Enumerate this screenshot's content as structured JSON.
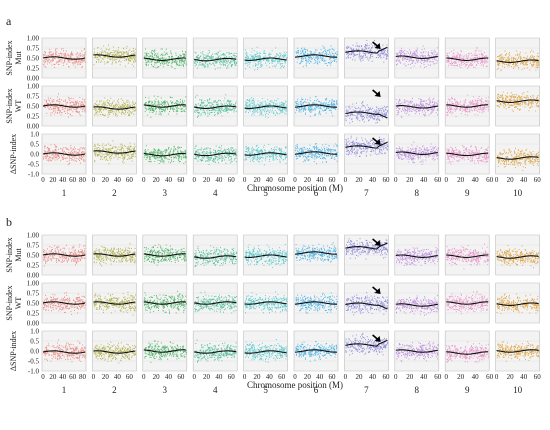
{
  "figure": {
    "panel_labels": [
      "a",
      "b"
    ]
  },
  "chart_data": [
    {
      "type": "scatter",
      "panel": "a",
      "xlabel": "Chromosome position (M)",
      "chromosomes": [
        "1",
        "2",
        "3",
        "4",
        "5",
        "6",
        "7",
        "8",
        "9",
        "10"
      ],
      "chromosome_x_ticks": {
        "1": [
          "0",
          "20",
          "40",
          "60",
          "80"
        ],
        "2": [
          "0",
          "20",
          "40",
          "60"
        ],
        "3": [
          "0",
          "20",
          "40",
          "60"
        ],
        "4": [
          "0",
          "20",
          "40",
          "60"
        ],
        "5": [
          "0",
          "20",
          "40",
          "60"
        ],
        "6": [
          "0",
          "20",
          "40",
          "60"
        ],
        "7": [
          "0",
          "20",
          "40",
          "60"
        ],
        "8": [
          "0",
          "20",
          "40",
          "60"
        ],
        "9": [
          "0",
          "20",
          "40",
          "60"
        ],
        "10": [
          "0",
          "20",
          "40",
          "60"
        ]
      },
      "colors": [
        "#e8746c",
        "#a3a32a",
        "#2aa84a",
        "#2eb387",
        "#35bfc4",
        "#2aa6e0",
        "#7a74d6",
        "#b37ad9",
        "#e67bc0",
        "#d9931f"
      ],
      "rows": [
        {
          "ylabel": [
            "SNP-index",
            "Mut"
          ],
          "ylim": [
            0,
            1
          ],
          "yticks": [
            "1.00",
            "0.75",
            "0.50",
            "0.25",
            "0.00"
          ],
          "trend": [
            0.5,
            0.55,
            0.47,
            0.46,
            0.47,
            0.55,
            0.65,
            0.52,
            0.47,
            0.42
          ],
          "arrow_chromosome": "7"
        },
        {
          "ylabel": [
            "SNP-index",
            "WT"
          ],
          "ylim": [
            0,
            1
          ],
          "yticks": [
            "1.00",
            "0.75",
            "0.50",
            "0.25",
            "0.00"
          ],
          "trend": [
            0.5,
            0.45,
            0.5,
            0.47,
            0.47,
            0.5,
            0.32,
            0.48,
            0.5,
            0.62
          ],
          "arrow_chromosome": "7"
        },
        {
          "ylabel": [
            "ΔSNP-index"
          ],
          "ylim": [
            -1,
            1
          ],
          "yticks": [
            "1.0",
            "0.5",
            "0.0",
            "-0.5",
            "-1.0"
          ],
          "trend": [
            0.0,
            0.1,
            -0.03,
            -0.02,
            0.0,
            0.05,
            0.35,
            0.04,
            -0.02,
            -0.2
          ],
          "arrow_chromosome": "7"
        }
      ]
    },
    {
      "type": "scatter",
      "panel": "b",
      "xlabel": "Chromosome position (M)",
      "chromosomes": [
        "1",
        "2",
        "3",
        "4",
        "5",
        "6",
        "7",
        "8",
        "9",
        "10"
      ],
      "chromosome_x_ticks": {
        "1": [
          "0",
          "20",
          "40",
          "60",
          "80"
        ],
        "2": [
          "0",
          "20",
          "40",
          "60"
        ],
        "3": [
          "0",
          "20",
          "40",
          "60"
        ],
        "4": [
          "0",
          "20",
          "40",
          "60"
        ],
        "5": [
          "0",
          "20",
          "40",
          "60"
        ],
        "6": [
          "0",
          "20",
          "40",
          "60"
        ],
        "7": [
          "0",
          "20",
          "40",
          "60"
        ],
        "8": [
          "0",
          "20",
          "40",
          "60"
        ],
        "9": [
          "0",
          "20",
          "40",
          "60"
        ],
        "10": [
          "0",
          "20",
          "40",
          "60"
        ]
      },
      "colors": [
        "#e8746c",
        "#a3a32a",
        "#2aa84a",
        "#2eb387",
        "#35bfc4",
        "#2aa6e0",
        "#7a74d6",
        "#b37ad9",
        "#e67bc0",
        "#d9931f"
      ],
      "rows": [
        {
          "ylabel": [
            "SNP-index",
            "Mut"
          ],
          "ylim": [
            0,
            1
          ],
          "yticks": [
            "1.00",
            "0.75",
            "0.50",
            "0.25",
            "0.00"
          ],
          "trend": [
            0.5,
            0.5,
            0.5,
            0.45,
            0.47,
            0.55,
            0.68,
            0.47,
            0.47,
            0.45
          ],
          "arrow_chromosome": "7"
        },
        {
          "ylabel": [
            "SNP-index",
            "WT"
          ],
          "ylim": [
            0,
            1
          ],
          "yticks": [
            "1.00",
            "0.75",
            "0.50",
            "0.25",
            "0.00"
          ],
          "trend": [
            0.5,
            0.5,
            0.5,
            0.5,
            0.5,
            0.5,
            0.47,
            0.45,
            0.5,
            0.47
          ],
          "arrow_chromosome": "7"
        },
        {
          "ylabel": [
            "ΔSNP-index"
          ],
          "ylim": [
            -1,
            1
          ],
          "yticks": [
            "1.0",
            "0.5",
            "0.0",
            "-0.5",
            "-1.0"
          ],
          "trend": [
            -0.05,
            -0.05,
            0.0,
            -0.05,
            -0.05,
            0.0,
            0.3,
            0.0,
            -0.1,
            0.0
          ],
          "arrow_chromosome": "7"
        }
      ]
    }
  ]
}
